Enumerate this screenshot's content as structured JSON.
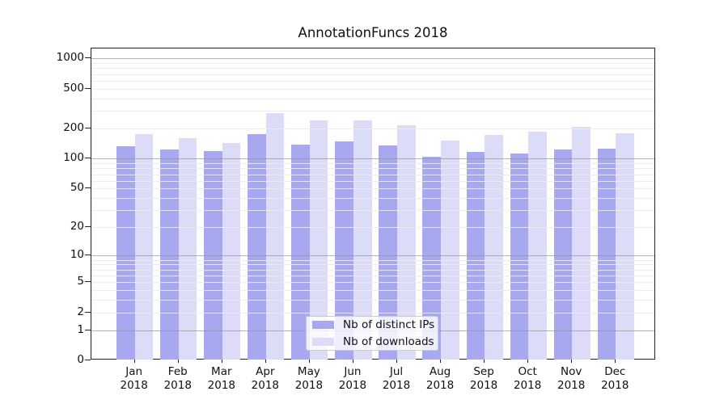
{
  "chart_data": {
    "type": "bar",
    "title": "AnnotationFuncs 2018",
    "categories": [
      "Jan 2018",
      "Feb 2018",
      "Mar 2018",
      "Apr 2018",
      "May 2018",
      "Jun 2018",
      "Jul 2018",
      "Aug 2018",
      "Sep 2018",
      "Oct 2018",
      "Nov 2018",
      "Dec 2018"
    ],
    "months": [
      "Jan",
      "Feb",
      "Mar",
      "Apr",
      "May",
      "Jun",
      "Jul",
      "Aug",
      "Sep",
      "Oct",
      "Nov",
      "Dec"
    ],
    "year": "2018",
    "series": [
      {
        "name": "Nb of distinct IPs",
        "color": "#a8a8f0",
        "values": [
          133,
          124,
          119,
          178,
          138,
          150,
          136,
          104,
          118,
          112,
          124,
          127
        ]
      },
      {
        "name": "Nb of downloads",
        "color": "#dcdcf8",
        "values": [
          176,
          162,
          143,
          285,
          243,
          240,
          216,
          151,
          173,
          187,
          208,
          179
        ]
      }
    ],
    "xlabel": "",
    "ylabel": "",
    "y_scale": "symlog (log10 of value+1)",
    "ylim": [
      0,
      1210
    ],
    "y_tick_labels": [
      0,
      1,
      2,
      5,
      10,
      20,
      50,
      100,
      200,
      500,
      1000
    ],
    "grid": {
      "major_lines_at": [
        1,
        10,
        100,
        1000
      ],
      "minor_lines": "2-9 of each decade",
      "drawn_above_bars": true
    },
    "legend": {
      "position": "lower center",
      "entries": [
        "Nb of distinct IPs",
        "Nb of downloads"
      ]
    },
    "colors": {
      "bar_distinct_ips": "#a8a8f0",
      "bar_downloads": "#dcdcf8",
      "grid_major": "#b0b0b0",
      "grid_minor": "#ececec",
      "spine": "#222222"
    }
  }
}
